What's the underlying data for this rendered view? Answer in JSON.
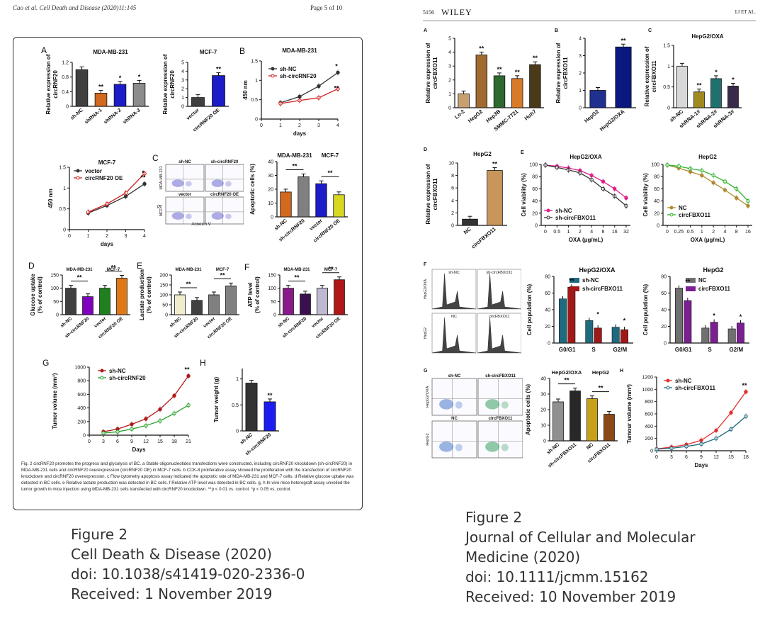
{
  "left_header": {
    "citation": "Cao et al. Cell Death and Disease (2020)11:145",
    "page": "Page 5 of 10"
  },
  "right_header": {
    "page_number": "5156",
    "journal_logo": "WILEY",
    "authors": "LI ET AL."
  },
  "left_figure": {
    "panel_letters": [
      "A",
      "B",
      "C",
      "D",
      "E",
      "F",
      "G",
      "H"
    ],
    "titles": {
      "mda": "MDA-MB-231",
      "mcf7": "MCF-7"
    },
    "ylabels": {
      "rel_expr": "Relative expression of circRNF20",
      "od": "450 nm",
      "apoptotic": "Apoptotic cells (%)",
      "glucose": "Glucose uptake (% of control)",
      "lactate": "Lactate production (% of control)",
      "atp": "ATP level (% of control)",
      "tumor_vol": "Tumor volume (mm³)",
      "tumor_wt": "Tumor weight (g)"
    },
    "xlabels": {
      "days": "days",
      "Days": "Days",
      "annexin": "Annexin V",
      "pi": "PI"
    },
    "legend": {
      "sh_nc": "sh-NC",
      "sh_circ": "sh-circRNF20",
      "vector": "vector",
      "oe": "circRNF20 OE"
    },
    "flow_labels": {
      "sh_nc": "sh-NC",
      "sh_circ": "sh-circRNF20",
      "vector": "vector",
      "oe": "circRNF20 OE",
      "row1": "MDA-MB-231",
      "row2": "MCF-7"
    },
    "sig": {
      "double": "**",
      "single": "*"
    },
    "caption": "Fig. 2 circRNF20 promotes the progress and glycolysis of BC. a Stable oligonucleotides transfections were constructed, including circRNF20 knockdown (sh-circRNF20) in MDA-MB-231 cells and circRNF20 overexpression (circRNF20 OE) in MCF-7 cells. b CCK-8 proliferative assay showed the proliferation with the transfection of circRNF20 knockdown and circRNF20 overexpression. c Flow cytometry apoptosis assay indicated the apoptotic rate of MDA-MB-231 and MCF-7 cells. d Relative glucose uptake was detected in BC cells. e Relative lactate production was detected in BC cells. f Relative ATP level was detected in BC cells. g, h In vivo mice heterograft assay unveiled the tumor growth in mice injection using MDA-MB-231 cells transfected with circRNF20 knockdown. **p < 0.01 vs. control. *p < 0.05 vs. control."
  },
  "right_figure": {
    "panel_letters": [
      "A",
      "B",
      "C",
      "D",
      "E",
      "F",
      "G",
      "H"
    ],
    "titles": {
      "hepg2oxa": "HepG2/OXA",
      "hepg2": "HepG2"
    },
    "ylabels": {
      "rel_expr": "Relative expression of circFBXO11",
      "viability": "Cell viability (%)",
      "population": "Cell population (%)",
      "apoptotic": "Apoptotic cells (%)",
      "tumour_vol": "Tumour volume (mm³)"
    },
    "xlabels": {
      "oxa": "OXA (μg/mL)",
      "days": "Days"
    },
    "legend": {
      "sh_nc": "sh-NC",
      "sh_circ": "sh-circFBXO11",
      "nc": "NC",
      "circ": "circFBXO11"
    },
    "flow_labels": {
      "sh_nc": "sh-NC",
      "sh_circ": "sh-circFBXO11",
      "nc": "NC",
      "circ": "circFBXO11",
      "row1": "HepG2/OXA",
      "row2": "HepG2"
    },
    "sig": {
      "double": "**",
      "single": "*"
    }
  },
  "captions": {
    "left": [
      "Figure 2",
      "Cell Death & Disease (2020)",
      "doi: 10.1038/s41419-020-2336-0",
      "Received: 1 November 2019"
    ],
    "right": [
      "Figure 2",
      "Journal of Cellular and Molecular",
      "Medicine (2020)",
      "doi: 10.1111/jcmm.15162",
      "Received: 10 November 2019"
    ]
  },
  "chart_data": [
    {
      "id": "L-A1",
      "type": "bar",
      "title": "MDA-MB-231",
      "ylabel": "Relative expression of circRNF20",
      "categories": [
        "sh-NC",
        "shRNA-1",
        "shRNA-2",
        "shRNA-3"
      ],
      "values": [
        1.0,
        0.36,
        0.6,
        0.63
      ],
      "ylim": [
        0,
        1.2
      ],
      "yticks": [
        0.0,
        0.4,
        0.8,
        1.2
      ],
      "colors": [
        "#404040",
        "#d2691e",
        "#1c1cc8",
        "#8c8c8c"
      ],
      "marks": [
        "",
        "**",
        "*",
        "*"
      ]
    },
    {
      "id": "L-A2",
      "type": "bar",
      "title": "MCF-7",
      "ylabel": "Relative expression of circRNF20",
      "categories": [
        "vector",
        "circRNF20 OE"
      ],
      "values": [
        1.0,
        3.5
      ],
      "ylim": [
        0,
        5
      ],
      "yticks": [
        0,
        1,
        2,
        3,
        4,
        5
      ],
      "colors": [
        "#404040",
        "#1c1cc8"
      ],
      "marks": [
        "",
        "**"
      ]
    },
    {
      "id": "L-B",
      "type": "line",
      "title": "MDA-MB-231",
      "xlabel": "days",
      "ylabel": "450 nm",
      "x": [
        1,
        2,
        3,
        4
      ],
      "xlim": [
        0,
        4
      ],
      "ylim": [
        0,
        1.5
      ],
      "yticks": [
        0.0,
        0.5,
        1.0,
        1.5
      ],
      "series": [
        {
          "name": "sh-NC",
          "values": [
            0.42,
            0.58,
            0.85,
            1.2
          ],
          "color": "#333333"
        },
        {
          "name": "sh-circRNF20",
          "values": [
            0.4,
            0.48,
            0.55,
            0.78
          ],
          "color": "#d02020"
        }
      ],
      "marks_at_end": [
        "*",
        "**"
      ]
    },
    {
      "id": "L-B2",
      "type": "line",
      "title": "MCF-7",
      "xlabel": "days",
      "ylabel": "450 nm",
      "x": [
        1,
        2,
        3,
        4
      ],
      "xlim": [
        0,
        4
      ],
      "ylim": [
        0,
        1.5
      ],
      "yticks": [
        0.0,
        0.5,
        1.0,
        1.5
      ],
      "series": [
        {
          "name": "vector",
          "values": [
            0.4,
            0.58,
            0.8,
            1.1
          ],
          "color": "#333333"
        },
        {
          "name": "circRNF20 OE",
          "values": [
            0.42,
            0.62,
            0.88,
            1.35
          ],
          "color": "#d02020"
        }
      ],
      "marks_at_end": [
        "**",
        "*"
      ]
    },
    {
      "id": "L-C",
      "type": "bar",
      "ylabel": "Apoptotic cells (%)",
      "groups": [
        "MDA-MB-231",
        "MCF-7"
      ],
      "categories": [
        "sh-NC",
        "sh-circRNF20",
        "vector",
        "circRNF20 OE"
      ],
      "values": [
        18,
        29,
        24,
        16
      ],
      "ylim": [
        0,
        40
      ],
      "yticks": [
        0,
        10,
        20,
        30,
        40
      ],
      "colors": [
        "#d2691e",
        "#808080",
        "#1c1cc8",
        "#d8d820"
      ],
      "marks": [
        "**",
        "**"
      ]
    },
    {
      "id": "L-D",
      "type": "bar",
      "ylabel": "Glucose uptake (% of control)",
      "groups": [
        "MDA-MB-231",
        "MCF-7"
      ],
      "categories": [
        "sh-NC",
        "sh-circRNF20",
        "vector",
        "circRNF20 OE"
      ],
      "values": [
        100,
        68,
        100,
        138
      ],
      "ylim": [
        0,
        150
      ],
      "yticks": [
        0,
        50,
        100,
        150
      ],
      "colors": [
        "#404040",
        "#8000c0",
        "#208020",
        "#e07818"
      ],
      "marks": [
        "**",
        "**"
      ]
    },
    {
      "id": "L-E",
      "type": "bar",
      "ylabel": "Lactate production (% of control)",
      "groups": [
        "MDA-MB-231",
        "MCF-7"
      ],
      "categories": [
        "sh-NC",
        "sh-circRNF20",
        "vector",
        "circRNF20 OE"
      ],
      "values": [
        100,
        72,
        100,
        145
      ],
      "ylim": [
        0,
        200
      ],
      "yticks": [
        0,
        50,
        100,
        150,
        200
      ],
      "colors": [
        "#f0eccc",
        "#404040",
        "#808080",
        "#808080"
      ],
      "marks": [
        "**",
        "**"
      ]
    },
    {
      "id": "L-F",
      "type": "bar",
      "ylabel": "ATP level (% of control)",
      "groups": [
        "MDA-MB-231",
        "MCF-7"
      ],
      "categories": [
        "sh-NC",
        "sh-circRNF20",
        "vector",
        "circRNF20 OE"
      ],
      "values": [
        100,
        78,
        100,
        132
      ],
      "ylim": [
        0,
        150
      ],
      "yticks": [
        0,
        50,
        100,
        150
      ],
      "colors": [
        "#8a1a8a",
        "#3a1050",
        "#c0b8d0",
        "#b01818"
      ],
      "marks": [
        "**",
        "**"
      ]
    },
    {
      "id": "L-G",
      "type": "line",
      "xlabel": "Days",
      "ylabel": "Tumor volume (mm³)",
      "x": [
        3,
        6,
        9,
        12,
        15,
        18,
        21
      ],
      "xlim": [
        0,
        21
      ],
      "ylim": [
        0,
        1000
      ],
      "yticks": [
        0,
        200,
        400,
        600,
        800,
        1000
      ],
      "series": [
        {
          "name": "sh-NC",
          "values": [
            50,
            90,
            160,
            240,
            380,
            580,
            870
          ],
          "color": "#b01818"
        },
        {
          "name": "sh-circRNF20",
          "values": [
            30,
            50,
            90,
            140,
            210,
            320,
            440
          ],
          "color": "#28a028"
        }
      ],
      "marks_at_end": [
        "**"
      ]
    },
    {
      "id": "L-H",
      "type": "bar",
      "ylabel": "Tumor weight (g)",
      "categories": [
        "sh-NC",
        "sh-circRNF20"
      ],
      "values": [
        0.92,
        0.56
      ],
      "ylim": [
        0,
        1.2
      ],
      "yticks": [
        0.0,
        0.5,
        1.0
      ],
      "colors": [
        "#333333",
        "#1c1cf0"
      ],
      "marks": [
        "",
        "**"
      ]
    },
    {
      "id": "R-A",
      "type": "bar",
      "ylabel": "Relative expression of circFBXO11",
      "categories": [
        "Lo-2",
        "HepG2",
        "Hep3B",
        "SMMC-7721",
        "Huh7"
      ],
      "values": [
        1.0,
        3.8,
        2.3,
        2.1,
        3.1
      ],
      "ylim": [
        0,
        5
      ],
      "yticks": [
        0,
        1,
        2,
        3,
        4,
        5
      ],
      "colors": [
        "#c8a070",
        "#a06a30",
        "#2e6a30",
        "#d87a28",
        "#4a3a1a"
      ],
      "marks": [
        "",
        "**",
        "**",
        "**",
        "**"
      ]
    },
    {
      "id": "R-B",
      "type": "bar",
      "ylabel": "Relative expression of circFBXO11",
      "categories": [
        "HepG2",
        "HepG2/OXA"
      ],
      "values": [
        1.0,
        3.5
      ],
      "ylim": [
        0,
        4
      ],
      "yticks": [
        0,
        1,
        2,
        3,
        4
      ],
      "colors": [
        "#203090",
        "#0a1880"
      ],
      "marks": [
        "",
        "**"
      ]
    },
    {
      "id": "R-C",
      "type": "bar",
      "title": "HepG2/OXA",
      "ylabel": "Relative expression of circFBXO11",
      "categories": [
        "sh-NC",
        "shRNA-1#",
        "shRNA-2#",
        "shRNA-3#"
      ],
      "values": [
        1.0,
        0.38,
        0.7,
        0.52
      ],
      "ylim": [
        0,
        1.5
      ],
      "yticks": [
        0.0,
        0.5,
        1.0,
        1.5
      ],
      "colors": [
        "#d8d8d8",
        "#a08a20",
        "#207070",
        "#3a2a4a"
      ],
      "marks": [
        "",
        "**",
        "*",
        "*"
      ]
    },
    {
      "id": "R-D",
      "type": "bar",
      "title": "HepG2",
      "ylabel": "Relative expression of circFBXO11",
      "categories": [
        "NC",
        "circFBXO11"
      ],
      "values": [
        1.0,
        8.8
      ],
      "ylim": [
        0,
        10
      ],
      "yticks": [
        0,
        2,
        4,
        6,
        8,
        10
      ],
      "colors": [
        "#333333",
        "#c8955a"
      ],
      "marks": [
        "",
        "**"
      ]
    },
    {
      "id": "R-E1",
      "type": "line",
      "title": "HepG2/OXA",
      "xlabel": "OXA (μg/mL)",
      "ylabel": "Cell viability (%)",
      "x": [
        "0",
        "0.5",
        "1",
        "2",
        "4",
        "8",
        "16",
        "32"
      ],
      "ylim": [
        0,
        100
      ],
      "yticks": [
        0,
        20,
        40,
        60,
        80,
        100
      ],
      "series": [
        {
          "name": "sh-NC",
          "values": [
            99,
            97,
            94,
            90,
            82,
            72,
            60,
            45
          ],
          "color": "#e0208a"
        },
        {
          "name": "sh-circFBXO11",
          "values": [
            99,
            95,
            91,
            86,
            75,
            60,
            48,
            32
          ],
          "color": "#333333"
        }
      ]
    },
    {
      "id": "R-E2",
      "type": "line",
      "title": "HepG2",
      "xlabel": "OXA (μg/mL)",
      "ylabel": "Cell viability (%)",
      "x": [
        "0",
        "0.25",
        "0.5",
        "1",
        "2",
        "4",
        "8",
        "16"
      ],
      "ylim": [
        0,
        100
      ],
      "yticks": [
        0,
        20,
        40,
        60,
        80,
        100
      ],
      "series": [
        {
          "name": "NC",
          "values": [
            99,
            94,
            88,
            82,
            70,
            58,
            45,
            32
          ],
          "color": "#b08a30"
        },
        {
          "name": "circFBXO11",
          "values": [
            99,
            97,
            93,
            90,
            82,
            72,
            60,
            40
          ],
          "color": "#30b030"
        }
      ]
    },
    {
      "id": "R-F1",
      "type": "bar",
      "title": "HepG2/OXA",
      "ylabel": "Cell population (%)",
      "categories": [
        "G0/G1",
        "S",
        "G2/M"
      ],
      "series": [
        {
          "name": "sh-NC",
          "values": [
            53,
            27,
            19
          ],
          "color": "#206a80"
        },
        {
          "name": "sh-circFBXO11",
          "values": [
            67,
            18,
            16
          ],
          "color": "#a01818"
        }
      ],
      "ylim": [
        0,
        80
      ],
      "yticks": [
        0,
        20,
        40,
        60,
        80
      ]
    },
    {
      "id": "R-F2",
      "type": "bar",
      "title": "HepG2",
      "ylabel": "Cell population (%)",
      "categories": [
        "G0/G1",
        "S",
        "G2/M"
      ],
      "series": [
        {
          "name": "NC",
          "values": [
            66,
            18,
            17
          ],
          "color": "#707070"
        },
        {
          "name": "circFBXO11",
          "values": [
            51,
            25,
            24
          ],
          "color": "#7a2090"
        }
      ],
      "ylim": [
        0,
        80
      ],
      "yticks": [
        0,
        20,
        40,
        60,
        80
      ]
    },
    {
      "id": "R-G",
      "type": "bar",
      "ylabel": "Apoptotic cells (%)",
      "groups": [
        "HepG2/OXA",
        "HepG2"
      ],
      "categories": [
        "sh-NC",
        "sh-circFBXO11",
        "NC",
        "circFBXO11"
      ],
      "values": [
        25,
        32,
        27,
        17
      ],
      "ylim": [
        0,
        40
      ],
      "yticks": [
        0,
        10,
        20,
        30,
        40
      ],
      "colors": [
        "#909090",
        "#282828",
        "#c8a018",
        "#8a4a18"
      ],
      "marks": [
        "**",
        "**"
      ]
    },
    {
      "id": "R-H",
      "type": "line",
      "xlabel": "Days",
      "ylabel": "Tumour volume (mm³)",
      "x": [
        0,
        3,
        6,
        9,
        12,
        15,
        18
      ],
      "xlim": [
        0,
        18
      ],
      "ylim": [
        0,
        1200
      ],
      "yticks": [
        0,
        200,
        400,
        600,
        800,
        1000,
        1200
      ],
      "series": [
        {
          "name": "sh-NC",
          "values": [
            30,
            60,
            100,
            170,
            330,
            620,
            960
          ],
          "color": "#e03030"
        },
        {
          "name": "sh-circFBXO11",
          "values": [
            25,
            40,
            70,
            110,
            200,
            350,
            560
          ],
          "color": "#206a80"
        }
      ],
      "marks_at_end": [
        "**"
      ]
    }
  ]
}
